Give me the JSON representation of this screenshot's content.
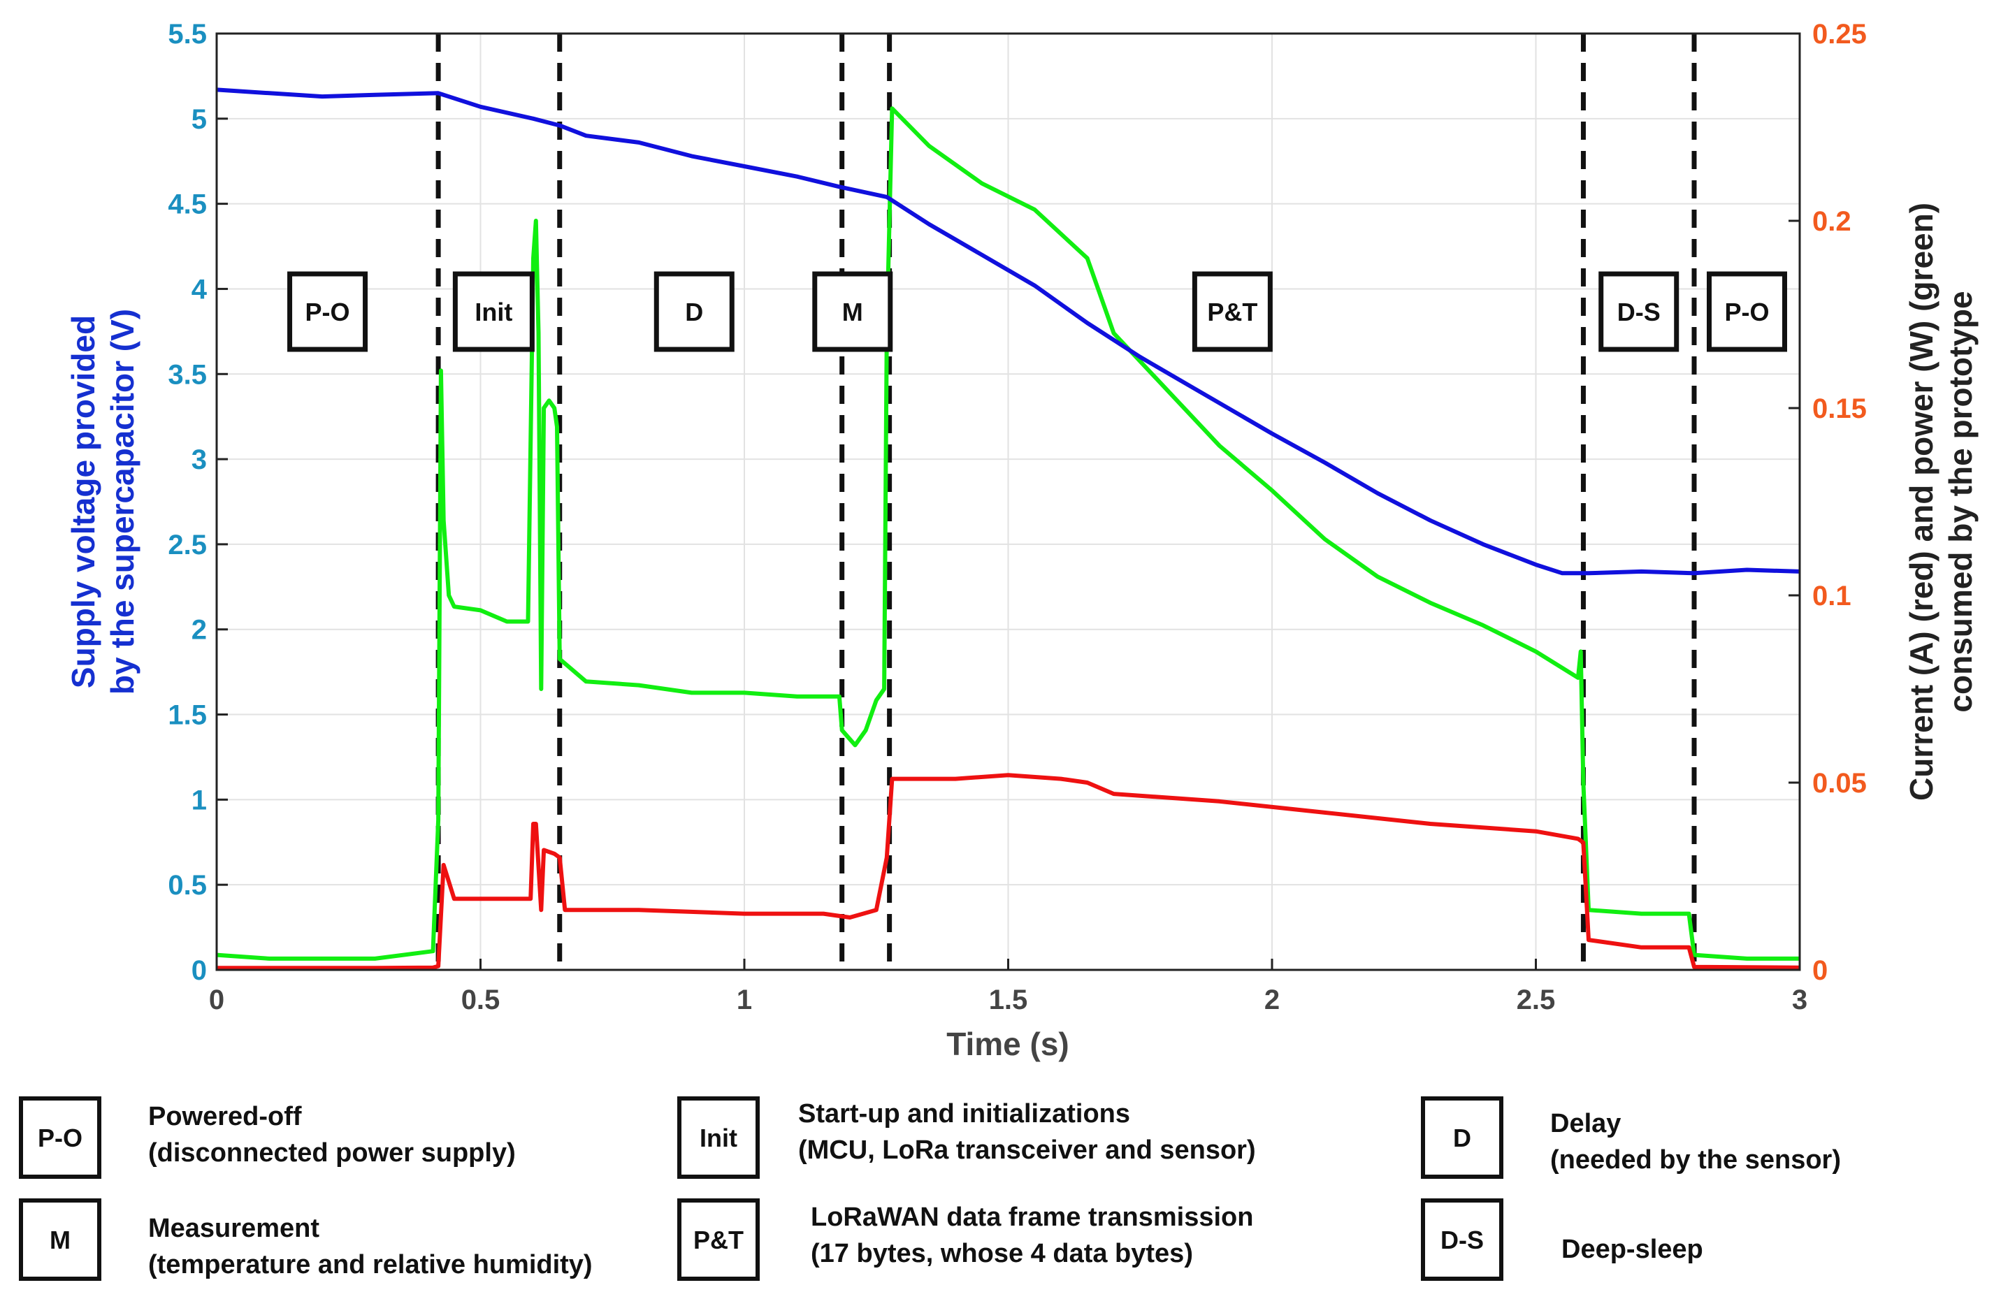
{
  "chart_data": {
    "type": "line",
    "title": "",
    "xlabel": "Time (s)",
    "ylabel_left": [
      "Supply voltage provided",
      "by the supercapacitor (V)"
    ],
    "ylabel_right": [
      "Current (A) (red) and power (W) (green)",
      "consumed by the prototype"
    ],
    "xlim": [
      0,
      3
    ],
    "ylim_left": [
      0,
      5.5
    ],
    "ylim_right": [
      0,
      0.25
    ],
    "x_ticks": [
      "0",
      "0.5",
      "1",
      "1.5",
      "2",
      "2.5",
      "3"
    ],
    "x_tick_values": [
      0,
      0.5,
      1,
      1.5,
      2,
      2.5,
      3
    ],
    "y_left_ticks": [
      "0",
      "0.5",
      "1",
      "1.5",
      "2",
      "2.5",
      "3",
      "3.5",
      "4",
      "4.5",
      "5",
      "5.5"
    ],
    "y_left_tick_values": [
      0,
      0.5,
      1,
      1.5,
      2,
      2.5,
      3,
      3.5,
      4,
      4.5,
      5,
      5.5
    ],
    "y_right_ticks": [
      "0",
      "0.05",
      "0.1",
      "0.15",
      "0.2",
      "0.25"
    ],
    "y_right_tick_values": [
      0,
      0.05,
      0.1,
      0.15,
      0.2,
      0.25
    ],
    "grid": true,
    "colors": {
      "voltage": "#1010dd",
      "current": "#ee1111",
      "power": "#11ee11",
      "left_axis": "#1a8fc0",
      "right_axis": "#f25a1e",
      "left_title": "#1530d0"
    },
    "series": [
      {
        "axis": "left",
        "x": [
          0,
          0.1,
          0.2,
          0.3,
          0.42,
          0.5,
          0.6,
          0.65,
          0.7,
          0.8,
          0.9,
          1.0,
          1.1,
          1.18,
          1.27,
          1.35,
          1.45,
          1.55,
          1.65,
          1.75,
          1.85,
          2.0,
          2.1,
          2.2,
          2.3,
          2.4,
          2.5,
          2.55,
          2.6,
          2.7,
          2.8,
          2.9,
          3.0
        ],
        "values": [
          5.17,
          5.15,
          5.13,
          5.14,
          5.15,
          5.07,
          5.0,
          4.96,
          4.9,
          4.86,
          4.78,
          4.72,
          4.66,
          4.6,
          4.54,
          4.38,
          4.2,
          4.02,
          3.8,
          3.6,
          3.42,
          3.15,
          2.98,
          2.8,
          2.64,
          2.5,
          2.38,
          2.33,
          2.33,
          2.34,
          2.33,
          2.35,
          2.34
        ]
      },
      {
        "axis": "right",
        "x": [
          0,
          0.1,
          0.2,
          0.3,
          0.41,
          0.42,
          0.43,
          0.45,
          0.5,
          0.55,
          0.595,
          0.6,
          0.605,
          0.615,
          0.62,
          0.64,
          0.65,
          0.66,
          0.8,
          1.0,
          1.15,
          1.2,
          1.25,
          1.27,
          1.28,
          1.4,
          1.5,
          1.6,
          1.65,
          1.7,
          1.9,
          2.1,
          2.3,
          2.5,
          2.58,
          2.59,
          2.6,
          2.7,
          2.79,
          2.8,
          2.9,
          3.0
        ],
        "values": [
          0.0005,
          0.0005,
          0.0005,
          0.0005,
          0.0006,
          0.001,
          0.028,
          0.019,
          0.019,
          0.019,
          0.019,
          0.039,
          0.039,
          0.016,
          0.032,
          0.031,
          0.03,
          0.016,
          0.016,
          0.015,
          0.015,
          0.014,
          0.016,
          0.03,
          0.051,
          0.051,
          0.052,
          0.051,
          0.05,
          0.047,
          0.045,
          0.042,
          0.039,
          0.037,
          0.035,
          0.034,
          0.008,
          0.006,
          0.006,
          0.0008,
          0.0007,
          0.0006
        ]
      },
      {
        "axis": "right",
        "x": [
          0,
          0.1,
          0.2,
          0.3,
          0.41,
          0.42,
          0.425,
          0.43,
          0.44,
          0.45,
          0.5,
          0.55,
          0.59,
          0.6,
          0.605,
          0.61,
          0.615,
          0.62,
          0.63,
          0.64,
          0.645,
          0.65,
          0.7,
          0.8,
          0.9,
          1.0,
          1.1,
          1.18,
          1.185,
          1.21,
          1.23,
          1.25,
          1.265,
          1.27,
          1.28,
          1.35,
          1.45,
          1.55,
          1.65,
          1.7,
          1.8,
          1.9,
          2.0,
          2.1,
          2.2,
          2.3,
          2.4,
          2.5,
          2.58,
          2.585,
          2.59,
          2.6,
          2.7,
          2.78,
          2.79,
          2.8,
          2.9,
          3.0
        ],
        "values": [
          0.004,
          0.003,
          0.003,
          0.003,
          0.005,
          0.04,
          0.16,
          0.12,
          0.1,
          0.097,
          0.096,
          0.093,
          0.093,
          0.19,
          0.2,
          0.17,
          0.075,
          0.15,
          0.152,
          0.15,
          0.145,
          0.083,
          0.077,
          0.076,
          0.074,
          0.074,
          0.073,
          0.073,
          0.064,
          0.06,
          0.064,
          0.072,
          0.075,
          0.17,
          0.23,
          0.22,
          0.21,
          0.203,
          0.19,
          0.17,
          0.155,
          0.14,
          0.128,
          0.115,
          0.105,
          0.098,
          0.092,
          0.085,
          0.078,
          0.085,
          0.05,
          0.016,
          0.015,
          0.015,
          0.015,
          0.004,
          0.003,
          0.003
        ]
      }
    ],
    "phases": [
      {
        "label": "P-O",
        "x": 0.21
      },
      {
        "label": "Init",
        "x": 0.525
      },
      {
        "label": "D",
        "x": 0.905
      },
      {
        "label": "M",
        "x": 1.205
      },
      {
        "label": "P&T",
        "x": 1.925
      },
      {
        "label": "D-S",
        "x": 2.695
      },
      {
        "label": "P-O",
        "x": 2.9
      }
    ],
    "boundaries": [
      0.42,
      0.65,
      1.185,
      1.275,
      2.59,
      2.8
    ]
  },
  "legend": [
    {
      "abbr": "P-O",
      "lines": [
        "Powered-off",
        "(disconnected power supply)"
      ]
    },
    {
      "abbr": "Init",
      "lines": [
        "Start-up and initializations",
        "(MCU, LoRa transceiver and sensor)"
      ]
    },
    {
      "abbr": "D",
      "lines": [
        "Delay",
        "(needed by the sensor)"
      ]
    },
    {
      "abbr": "M",
      "lines": [
        "Measurement",
        "(temperature and relative humidity)"
      ]
    },
    {
      "abbr": "P&T",
      "lines": [
        "LoRaWAN data frame transmission",
        "(17 bytes, whose 4 data bytes)"
      ]
    },
    {
      "abbr": "D-S",
      "lines": [
        "Deep-sleep"
      ]
    }
  ]
}
